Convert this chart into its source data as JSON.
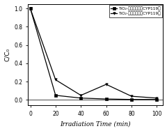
{
  "series": [
    {
      "label": "TiO₂-被苯罗啔负载CYP119前",
      "x": [
        0,
        20,
        40,
        60,
        80,
        100
      ],
      "y": [
        1.0,
        0.05,
        0.02,
        0.01,
        0.005,
        0.005
      ],
      "marker": "s",
      "linestyle": "-",
      "color": "#000000",
      "markersize": 2.5
    },
    {
      "label": "TiO₂-被苯罗啔负载CYP119后",
      "x": [
        0,
        20,
        40,
        60,
        80,
        100
      ],
      "y": [
        1.0,
        0.22,
        0.05,
        0.17,
        0.04,
        0.02
      ],
      "marker": "v",
      "linestyle": "-",
      "color": "#000000",
      "markersize": 2.5
    }
  ],
  "xlabel": "Irradiation Time (min)",
  "ylabel": "C/C₀",
  "xlim": [
    -2,
    105
  ],
  "ylim": [
    -0.06,
    1.05
  ],
  "xticks": [
    0,
    20,
    40,
    60,
    80,
    100
  ],
  "yticks": [
    0.0,
    0.2,
    0.4,
    0.6,
    0.8,
    1.0
  ],
  "legend_fontsize": 4.2,
  "xlabel_fontsize": 6.5,
  "ylabel_fontsize": 6.5,
  "tick_fontsize": 5.5,
  "background_color": "#ffffff",
  "linewidth": 0.9
}
